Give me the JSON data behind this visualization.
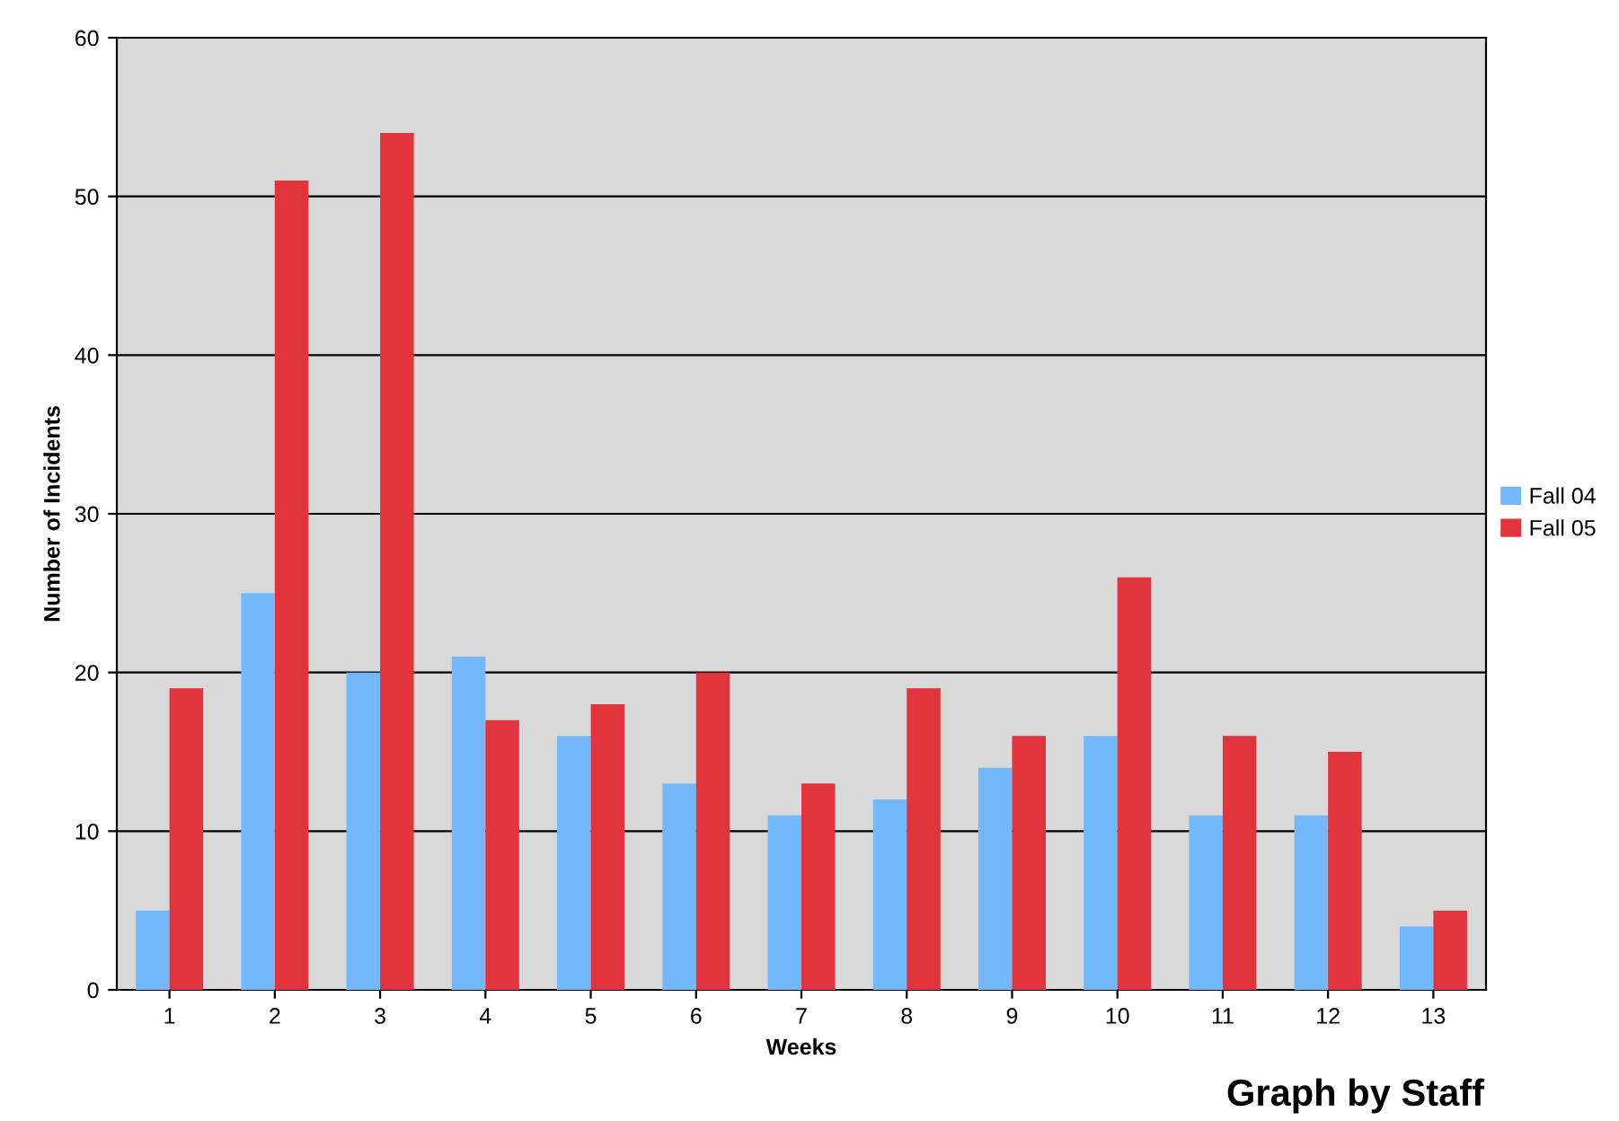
{
  "chart_data": {
    "type": "bar",
    "xlabel": "Weeks",
    "ylabel": "Number of Incidents",
    "categories": [
      "1",
      "2",
      "3",
      "4",
      "5",
      "6",
      "7",
      "8",
      "9",
      "10",
      "11",
      "12",
      "13"
    ],
    "series": [
      {
        "name": "Fall 04",
        "color": "#74b8fc",
        "values": [
          5,
          25,
          20,
          21,
          16,
          13,
          11,
          12,
          14,
          16,
          11,
          11,
          4
        ]
      },
      {
        "name": "Fall 05",
        "color": "#e2343c",
        "values": [
          19,
          51,
          54,
          17,
          18,
          20,
          13,
          19,
          16,
          26,
          16,
          15,
          5
        ]
      }
    ],
    "ylim": [
      0,
      60
    ],
    "yticks": [
      0,
      10,
      20,
      30,
      40,
      50,
      60
    ],
    "grid": "y",
    "legend": "right",
    "annotations": [
      "Graph by Staff"
    ]
  }
}
